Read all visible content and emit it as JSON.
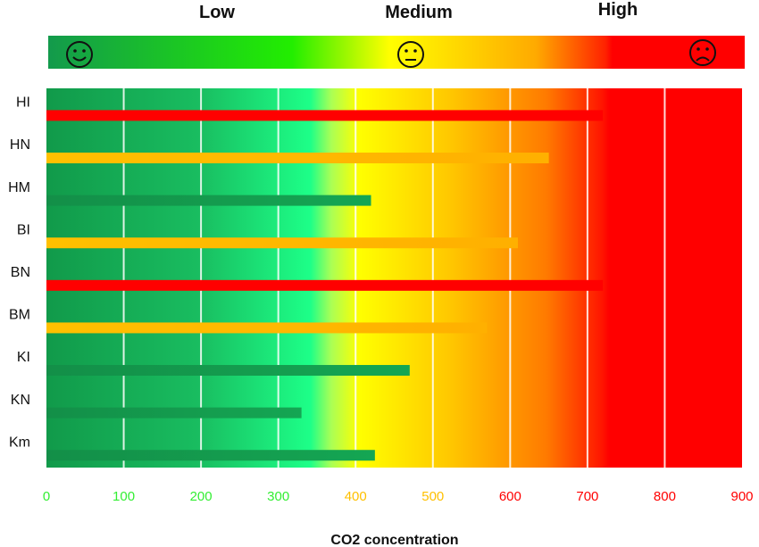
{
  "chart_data": {
    "type": "bar",
    "orientation": "horizontal",
    "title": "",
    "xlabel": "CO2 concentration",
    "ylabel": "",
    "xlim": [
      0,
      900
    ],
    "xticks": [
      0,
      100,
      200,
      300,
      400,
      500,
      600,
      700,
      800,
      900
    ],
    "grid": true,
    "categories": [
      "HI",
      "HN",
      "HM",
      "BI",
      "BN",
      "BM",
      "KI",
      "KN",
      "Km"
    ],
    "values": [
      720,
      650,
      420,
      610,
      720,
      570,
      470,
      330,
      425
    ],
    "levels": [
      {
        "label": "Low",
        "icon": "smiley-happy-icon"
      },
      {
        "label": "Medium",
        "icon": "smiley-neutral-icon"
      },
      {
        "label": "High",
        "icon": "smiley-sad-icon"
      }
    ],
    "colors": {
      "low": "#0fa14e",
      "medium": "#ffc000",
      "high": "#ff0000",
      "tick_low": "#33ee33",
      "tick_medium": "#ffc000",
      "tick_high": "#ff0000"
    }
  }
}
